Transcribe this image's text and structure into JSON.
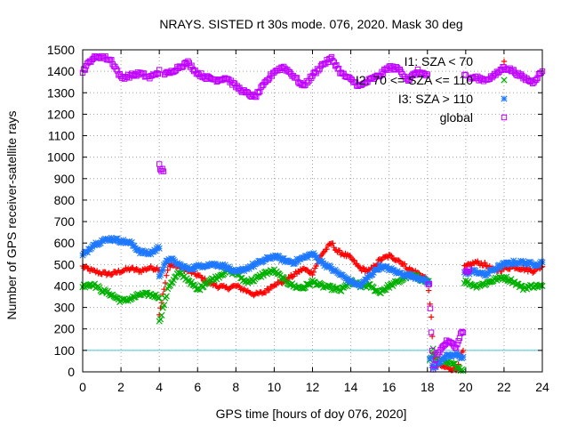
{
  "chart_data": {
    "type": "scatter",
    "title": "NRAYS. SISTED rt 30s mode. 076, 2020. Mask 30 deg",
    "xlabel": "GPS time [hours of doy 076, 2020]",
    "ylabel": "Number of GPS receiver-satellite rays",
    "xlim": [
      0,
      24
    ],
    "ylim": [
      0,
      1500
    ],
    "x_ticks": [
      0,
      2,
      4,
      6,
      8,
      10,
      12,
      14,
      16,
      18,
      20,
      22,
      24
    ],
    "y_ticks": [
      0,
      100,
      200,
      300,
      400,
      500,
      600,
      700,
      800,
      900,
      1000,
      1100,
      1200,
      1300,
      1400,
      1500
    ],
    "grid": true,
    "legend_position": "top-right",
    "reference_line": {
      "y": 100,
      "color": "#40c8d8"
    },
    "series": [
      {
        "name": "I1: SZA < 70",
        "marker": "+",
        "color": "#ff0000",
        "points": [
          [
            0,
            490
          ],
          [
            0.5,
            470
          ],
          [
            1,
            460
          ],
          [
            1.5,
            455
          ],
          [
            2,
            470
          ],
          [
            2.5,
            480
          ],
          [
            3,
            470
          ],
          [
            3.5,
            485
          ],
          [
            4,
            480
          ],
          [
            4.5,
            500
          ],
          [
            5,
            490
          ],
          [
            5.5,
            470
          ],
          [
            6,
            450
          ],
          [
            6.5,
            420
          ],
          [
            7,
            400
          ],
          [
            7.5,
            390
          ],
          [
            8,
            400
          ],
          [
            8.5,
            380
          ],
          [
            9,
            360
          ],
          [
            9.5,
            370
          ],
          [
            10,
            410
          ],
          [
            10.5,
            420
          ],
          [
            11,
            450
          ],
          [
            11.5,
            480
          ],
          [
            12,
            460
          ],
          [
            12.5,
            550
          ],
          [
            13,
            600
          ],
          [
            13.3,
            560
          ],
          [
            13.6,
            550
          ],
          [
            14,
            530
          ],
          [
            14.5,
            480
          ],
          [
            15,
            470
          ],
          [
            15.5,
            520
          ],
          [
            16,
            540
          ],
          [
            16.5,
            520
          ],
          [
            17,
            480
          ],
          [
            17.5,
            460
          ],
          [
            18,
            430
          ],
          [
            18.2,
            250
          ],
          [
            18.3,
            90
          ],
          [
            18.5,
            30
          ],
          [
            19,
            20
          ],
          [
            19.5,
            10
          ],
          [
            19.8,
            90
          ],
          [
            20,
            490
          ],
          [
            20.5,
            510
          ],
          [
            21,
            500
          ],
          [
            21.5,
            470
          ],
          [
            22,
            480
          ],
          [
            22.5,
            490
          ],
          [
            23,
            480
          ],
          [
            23.5,
            470
          ],
          [
            24,
            490
          ],
          [
            4,
            270
          ]
        ]
      },
      {
        "name": "I2: 70 <= SZA <= 110",
        "marker": "x",
        "color": "#00b000",
        "points": [
          [
            0,
            400
          ],
          [
            0.5,
            410
          ],
          [
            1,
            380
          ],
          [
            1.5,
            360
          ],
          [
            2,
            330
          ],
          [
            2.5,
            340
          ],
          [
            3,
            360
          ],
          [
            3.5,
            360
          ],
          [
            4,
            350
          ],
          [
            4.5,
            400
          ],
          [
            5,
            460
          ],
          [
            5.5,
            430
          ],
          [
            6,
            380
          ],
          [
            6.5,
            420
          ],
          [
            7,
            440
          ],
          [
            7.5,
            470
          ],
          [
            8,
            460
          ],
          [
            8.5,
            420
          ],
          [
            9,
            430
          ],
          [
            9.5,
            460
          ],
          [
            10,
            470
          ],
          [
            10.5,
            430
          ],
          [
            11,
            400
          ],
          [
            11.5,
            390
          ],
          [
            12,
            420
          ],
          [
            12.5,
            400
          ],
          [
            13,
            390
          ],
          [
            13.5,
            380
          ],
          [
            14,
            420
          ],
          [
            14.5,
            400
          ],
          [
            15,
            400
          ],
          [
            15.5,
            370
          ],
          [
            16,
            400
          ],
          [
            16.5,
            420
          ],
          [
            17,
            450
          ],
          [
            17.5,
            440
          ],
          [
            18,
            420
          ],
          [
            18.2,
            60
          ],
          [
            18.3,
            100
          ],
          [
            18.5,
            60
          ],
          [
            19,
            40
          ],
          [
            19.5,
            30
          ],
          [
            19.8,
            10
          ],
          [
            20,
            420
          ],
          [
            20.5,
            400
          ],
          [
            21,
            410
          ],
          [
            21.5,
            430
          ],
          [
            22,
            440
          ],
          [
            22.5,
            420
          ],
          [
            23,
            390
          ],
          [
            23.5,
            400
          ],
          [
            24,
            400
          ],
          [
            4,
            230
          ]
        ]
      },
      {
        "name": "I3: SZA > 110",
        "marker": "*",
        "color": "#1e78ff",
        "points": [
          [
            0,
            540
          ],
          [
            0.5,
            590
          ],
          [
            1,
            610
          ],
          [
            1.5,
            620
          ],
          [
            2,
            610
          ],
          [
            2.5,
            600
          ],
          [
            3,
            560
          ],
          [
            3.5,
            550
          ],
          [
            4,
            580
          ],
          [
            4.5,
            530
          ],
          [
            5,
            500
          ],
          [
            5.5,
            480
          ],
          [
            6,
            490
          ],
          [
            6.5,
            500
          ],
          [
            7,
            500
          ],
          [
            7.5,
            490
          ],
          [
            8,
            460
          ],
          [
            8.5,
            480
          ],
          [
            9,
            500
          ],
          [
            9.5,
            520
          ],
          [
            10,
            540
          ],
          [
            10.5,
            520
          ],
          [
            11,
            510
          ],
          [
            11.5,
            530
          ],
          [
            12,
            550
          ],
          [
            12.5,
            510
          ],
          [
            13,
            480
          ],
          [
            13.5,
            450
          ],
          [
            14,
            420
          ],
          [
            14.5,
            400
          ],
          [
            15,
            450
          ],
          [
            15.5,
            490
          ],
          [
            16,
            480
          ],
          [
            16.5,
            460
          ],
          [
            17,
            450
          ],
          [
            17.5,
            440
          ],
          [
            18,
            420
          ],
          [
            18.2,
            60
          ],
          [
            18.3,
            10
          ],
          [
            18.5,
            40
          ],
          [
            19,
            70
          ],
          [
            19.5,
            80
          ],
          [
            19.8,
            70
          ],
          [
            20,
            460
          ],
          [
            20.5,
            470
          ],
          [
            21,
            450
          ],
          [
            21.5,
            480
          ],
          [
            22,
            500
          ],
          [
            22.5,
            510
          ],
          [
            23,
            510
          ],
          [
            23.5,
            500
          ],
          [
            24,
            510
          ],
          [
            4,
            450
          ]
        ]
      },
      {
        "name": "global",
        "marker": "square",
        "color": "#c000ff",
        "points": [
          [
            0,
            1400
          ],
          [
            0.5,
            1460
          ],
          [
            1,
            1470
          ],
          [
            1.5,
            1450
          ],
          [
            2,
            1370
          ],
          [
            2.5,
            1380
          ],
          [
            3,
            1390
          ],
          [
            3.5,
            1370
          ],
          [
            4,
            1400
          ],
          [
            4.5,
            1390
          ],
          [
            5,
            1420
          ],
          [
            5.5,
            1440
          ],
          [
            6,
            1390
          ],
          [
            6.5,
            1370
          ],
          [
            7,
            1360
          ],
          [
            7.5,
            1370
          ],
          [
            8,
            1330
          ],
          [
            8.5,
            1300
          ],
          [
            9,
            1280
          ],
          [
            9.5,
            1340
          ],
          [
            10,
            1400
          ],
          [
            10.5,
            1420
          ],
          [
            11,
            1380
          ],
          [
            11.5,
            1330
          ],
          [
            12,
            1380
          ],
          [
            12.5,
            1430
          ],
          [
            13,
            1460
          ],
          [
            13.5,
            1390
          ],
          [
            14,
            1360
          ],
          [
            14.5,
            1330
          ],
          [
            15,
            1360
          ],
          [
            15.5,
            1380
          ],
          [
            16,
            1420
          ],
          [
            16.5,
            1410
          ],
          [
            17,
            1360
          ],
          [
            17.5,
            1400
          ],
          [
            18,
            1380
          ],
          [
            18.2,
            180
          ],
          [
            18.3,
            10
          ],
          [
            18.5,
            80
          ],
          [
            19,
            140
          ],
          [
            19.5,
            120
          ],
          [
            19.8,
            190
          ],
          [
            20,
            1380
          ],
          [
            20.5,
            1370
          ],
          [
            21,
            1360
          ],
          [
            21.5,
            1380
          ],
          [
            22,
            1420
          ],
          [
            22.5,
            1400
          ],
          [
            23,
            1370
          ],
          [
            23.5,
            1350
          ],
          [
            24,
            1400
          ],
          [
            4,
            960
          ],
          [
            4.05,
            940
          ],
          [
            18.1,
            400
          ],
          [
            20,
            470
          ]
        ]
      }
    ]
  }
}
